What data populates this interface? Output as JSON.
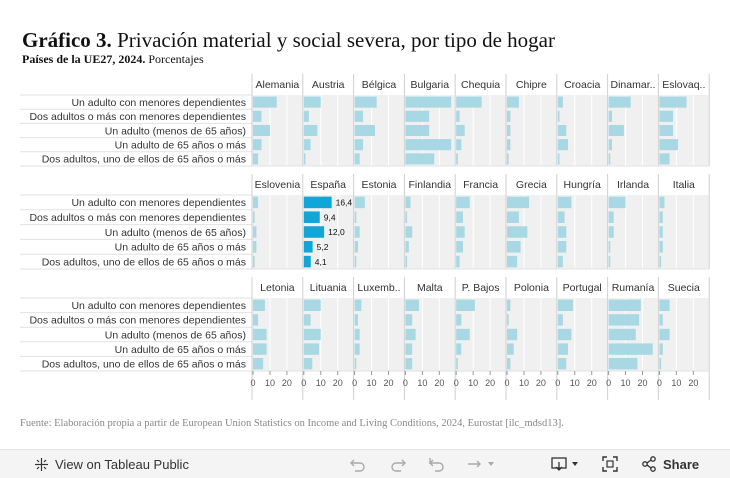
{
  "title": {
    "bold": "Gráfico 3.",
    "rest": " Privación material y social severa, por tipo de hogar"
  },
  "subtitle": {
    "bold": "Países de la UE27, 2024.",
    "rest": " Porcentajes"
  },
  "source": "Fuente: Elaboración propia a partir de European Union Statistics on Income and Living Conditions, 2024, Eurostat [ilc_mdsd13].",
  "colors": {
    "bar": "#a7d8e3",
    "highlight": "#10a6d7",
    "panel_bg": "#f0f0f0",
    "grid": "#ffffff"
  },
  "chart_data": {
    "type": "bar",
    "orientation": "horizontal",
    "categories": [
      "Un adulto con menores dependientes",
      "Dos adultos o más con menores dependientes",
      "Un adulto (menos de 65 años)",
      "Un adulto de 65 años o más",
      "Dos adultos, uno de ellos de 65 años o más"
    ],
    "xlim": [
      0,
      27
    ],
    "xticks": [
      "0",
      "10",
      "20"
    ],
    "highlighted_country": "España",
    "panels": [
      {
        "name": "Alemania",
        "values": [
          14,
          5,
          10,
          5,
          3
        ]
      },
      {
        "name": "Austria",
        "values": [
          10,
          3,
          8,
          4,
          1
        ]
      },
      {
        "name": "Bélgica",
        "values": [
          13,
          5,
          12,
          5,
          3
        ]
      },
      {
        "name": "Bulgaria",
        "values": [
          27,
          14,
          14,
          27,
          17
        ]
      },
      {
        "name": "Chequia",
        "values": [
          15,
          2,
          5,
          3,
          1
        ]
      },
      {
        "name": "Chipre",
        "values": [
          7,
          2,
          2,
          2,
          1
        ]
      },
      {
        "name": "Croacia",
        "values": [
          3,
          1,
          5,
          6,
          1
        ]
      },
      {
        "name": "Dinamar..",
        "values": [
          13,
          2,
          9,
          2,
          1
        ]
      },
      {
        "name": "Eslovaq..",
        "values": [
          16,
          8,
          8,
          11,
          6
        ]
      },
      {
        "name": "Eslovenia",
        "values": [
          3,
          1,
          2,
          2,
          1
        ]
      },
      {
        "name": "España",
        "values": [
          16.4,
          9.4,
          12.0,
          5.2,
          4.1
        ],
        "labels": [
          "16,4",
          "9,4",
          "12,0",
          "5,2",
          "4,1"
        ]
      },
      {
        "name": "Estonia",
        "values": [
          6,
          1,
          3,
          2,
          1
        ]
      },
      {
        "name": "Finlandia",
        "values": [
          3,
          1,
          4,
          2,
          1
        ]
      },
      {
        "name": "Francia",
        "values": [
          8,
          4,
          5,
          4,
          2
        ]
      },
      {
        "name": "Grecia",
        "values": [
          13,
          7,
          12,
          8,
          6
        ]
      },
      {
        "name": "Hungría",
        "values": [
          8,
          4,
          5,
          5,
          3
        ]
      },
      {
        "name": "Irlanda",
        "values": [
          10,
          3,
          3,
          1,
          1
        ]
      },
      {
        "name": "Italia",
        "values": [
          3,
          2,
          2,
          2,
          1
        ]
      },
      {
        "name": "Letonia",
        "values": [
          7,
          3,
          8,
          8,
          6
        ]
      },
      {
        "name": "Lituania",
        "values": [
          10,
          4,
          10,
          9,
          5
        ]
      },
      {
        "name": "Luxemb..",
        "values": [
          4,
          2,
          3,
          3,
          1
        ]
      },
      {
        "name": "Malta",
        "values": [
          8,
          4,
          6,
          4,
          4
        ]
      },
      {
        "name": "P. Bajos",
        "values": [
          11,
          3,
          8,
          3,
          1
        ]
      },
      {
        "name": "Polonia",
        "values": [
          2,
          1,
          6,
          4,
          2
        ]
      },
      {
        "name": "Portugal",
        "values": [
          9,
          3,
          8,
          6,
          5
        ]
      },
      {
        "name": "Rumanía",
        "values": [
          19,
          18,
          16,
          26,
          17
        ]
      },
      {
        "name": "Suecia",
        "values": [
          6,
          2,
          6,
          2,
          1
        ]
      }
    ]
  },
  "toolbar": {
    "view_label": "View on Tableau Public",
    "share_label": "Share",
    "icons": [
      "tableau-logo-icon",
      "undo-icon",
      "redo-icon",
      "revert-icon",
      "pause-icon",
      "download-icon",
      "fullscreen-icon",
      "share-icon"
    ]
  }
}
